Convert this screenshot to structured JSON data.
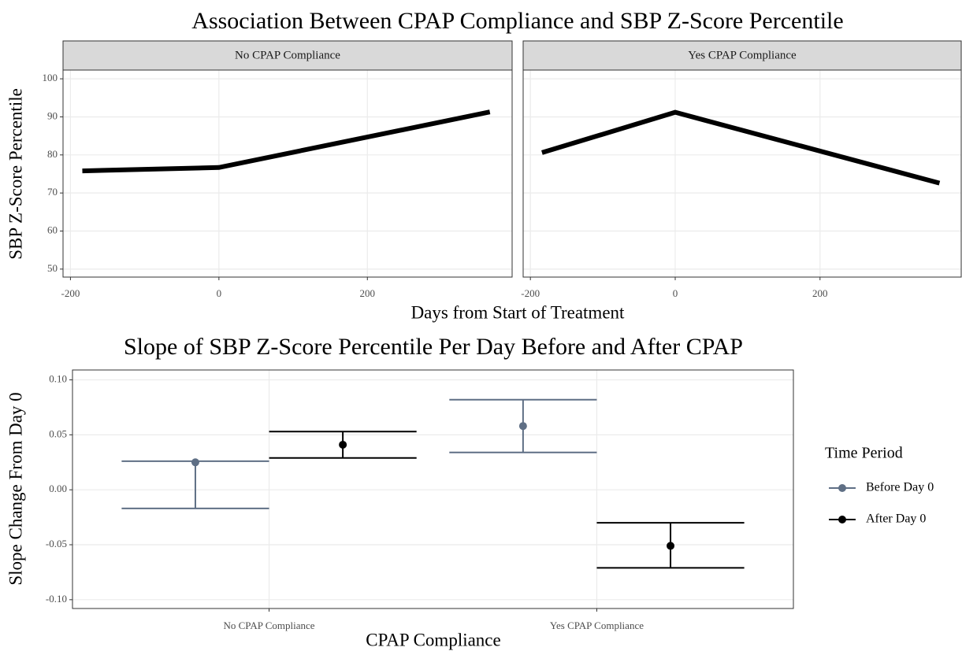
{
  "chart_data": [
    {
      "type": "line",
      "title": "Association Between CPAP Compliance and SBP Z-Score Percentile",
      "x_label": "Days from Start of Treatment",
      "y_label": "SBP Z-Score Percentile",
      "x": [
        -184,
        0,
        365
      ],
      "xlim": [
        -210,
        395
      ],
      "xticks": [
        -200,
        0,
        200
      ],
      "ylim": [
        47.9,
        102.3
      ],
      "yticks": [
        50,
        60,
        70,
        80,
        90,
        100
      ],
      "grid": true,
      "series": [
        {
          "name": "No CPAP Compliance",
          "color": "#000000",
          "values": [
            75.8,
            76.7,
            91.3
          ]
        },
        {
          "name": "Yes CPAP Compliance",
          "color": "#000000",
          "values": [
            80.6,
            91.2,
            72.6
          ]
        }
      ]
    },
    {
      "type": "errorbar",
      "title": "Slope of SBP Z-Score Percentile Per Day Before and After CPAP",
      "x_label": "CPAP Compliance",
      "y_label": "Slope Change From Day 0",
      "categories": [
        "No CPAP Compliance",
        "Yes CPAP Compliance"
      ],
      "ylim": [
        -0.108,
        0.109
      ],
      "yticks": [
        {
          "value": -0.1,
          "label": "-0.10"
        },
        -0.05,
        {
          "value": 0,
          "label": "0.00"
        },
        0.05,
        {
          "value": 0.1,
          "label": "0.10"
        }
      ],
      "grid": true,
      "legend_title": "Time Period",
      "legend": "right",
      "series": [
        {
          "name": "Before Day 0",
          "color": "#5f6f85",
          "values": [
            0.025,
            0.058
          ],
          "lower": [
            -0.017,
            0.034
          ],
          "upper": [
            0.026,
            0.082
          ]
        },
        {
          "name": "After Day 0",
          "color": "#000000",
          "values": [
            0.041,
            -0.051
          ],
          "lower": [
            0.029,
            -0.071
          ],
          "upper": [
            0.053,
            -0.03
          ]
        }
      ]
    }
  ]
}
